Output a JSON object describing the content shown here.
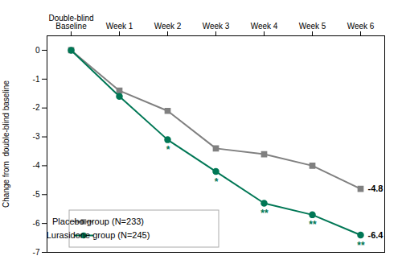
{
  "chart_data": {
    "type": "line",
    "categories": [
      "Double-blind\nBaseline",
      "Week 1",
      "Week 2",
      "Week 3",
      "Week 4",
      "Week 5",
      "Week 6"
    ],
    "series": [
      {
        "name": "Placebo group (N=233)",
        "color": "#808080",
        "marker": "square",
        "values": [
          0,
          -1.4,
          -2.1,
          -3.4,
          -3.6,
          -4.0,
          -4.8
        ],
        "value_labels": [
          null,
          null,
          null,
          null,
          null,
          null,
          "-4.8"
        ]
      },
      {
        "name": "Lurasidone group (N=245)",
        "color": "#007755",
        "marker": "circle",
        "values": [
          0,
          -1.6,
          -3.1,
          -4.2,
          -5.3,
          -5.7,
          -6.4
        ],
        "value_labels": [
          null,
          null,
          null,
          null,
          null,
          null,
          "-6.4"
        ],
        "annotations": [
          null,
          null,
          "*",
          "*",
          "**",
          "**",
          "**"
        ]
      }
    ],
    "ylabel": "Change from  double-blind baseline",
    "ylim": [
      -7,
      0.5
    ],
    "yticks": [
      0,
      -1,
      -2,
      -3,
      -4,
      -5,
      -6,
      -7
    ],
    "legend": "lower left",
    "grid": false
  }
}
